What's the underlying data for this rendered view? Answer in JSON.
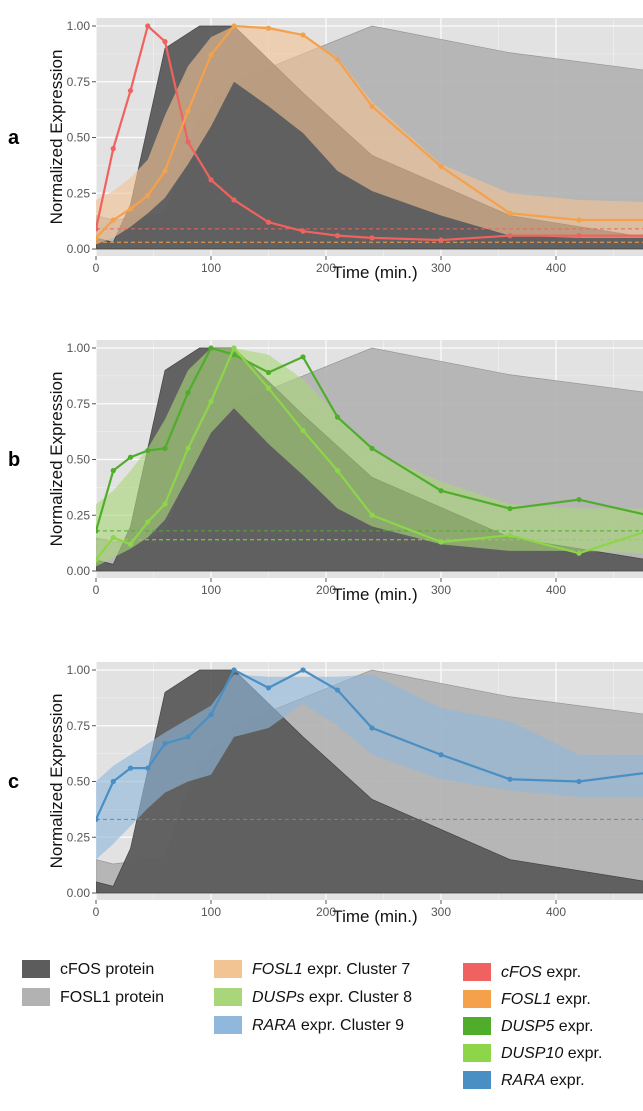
{
  "colors": {
    "cfos_protein": "#5c5c5c",
    "fosl1_protein": "#b2b2b2",
    "panel_bg": "#e2e2e2",
    "cfos_expr": "#f0625f",
    "fosl1_expr": "#f5a04a",
    "fosl1_cluster": "#f2c494",
    "dusp5_expr": "#50ad2c",
    "dusp10_expr": "#8dd549",
    "dusps_cluster": "#a9d67a",
    "rara_expr": "#4a8fc4",
    "rara_cluster": "#8fb8dc"
  },
  "legend": {
    "col1": [
      {
        "name": "cFOS protein",
        "color": "cfos_protein"
      },
      {
        "name": "FOSL1 protein",
        "color": "fosl1_protein"
      }
    ],
    "col2": [
      {
        "gene": "FOSL1",
        "rest": "expr. Cluster 7",
        "color": "fosl1_cluster"
      },
      {
        "gene": "DUSPs",
        "rest": "expr. Cluster 8",
        "color": "dusps_cluster"
      },
      {
        "gene": "RARA",
        "rest": "expr. Cluster 9",
        "color": "rara_cluster"
      }
    ],
    "col3": [
      {
        "gene": "cFOS",
        "rest": "expr.",
        "color": "cfos_expr"
      },
      {
        "gene": "FOSL1",
        "rest": "expr.",
        "color": "fosl1_expr"
      },
      {
        "gene": "DUSP5",
        "rest": "expr.",
        "color": "dusp5_expr"
      },
      {
        "gene": "DUSP10",
        "rest": "expr.",
        "color": "dusp10_expr"
      },
      {
        "gene": "RARA",
        "rest": "expr.",
        "color": "rara_expr"
      }
    ]
  },
  "chart_data": [
    {
      "type": "area",
      "panel_label": "a",
      "xlabel": "Time (min.)",
      "ylabel": "Normalized Expression",
      "xlim": [
        0,
        480
      ],
      "ylim": [
        0,
        1
      ],
      "xticks": [
        0,
        100,
        200,
        300,
        400
      ],
      "yticks": [
        "0.00",
        "0.25",
        "0.50",
        "0.75",
        "1.00"
      ],
      "grid": true,
      "proteins": [
        {
          "name": "FOSL1 protein",
          "color": "fosl1_protein",
          "x": [
            0,
            15,
            60,
            90,
            120,
            240,
            360,
            480
          ],
          "y": [
            0.15,
            0.13,
            0.16,
            0.6,
            0.75,
            1.0,
            0.88,
            0.8
          ]
        },
        {
          "name": "cFOS protein",
          "color": "cfos_protein",
          "x": [
            0,
            15,
            30,
            60,
            90,
            120,
            180,
            240,
            360,
            480
          ],
          "y": [
            0.05,
            0.03,
            0.2,
            0.9,
            1.0,
            1.0,
            0.7,
            0.42,
            0.15,
            0.05
          ]
        }
      ],
      "bands": [
        {
          "name": "FOSL1 expr. Cluster 7",
          "color": "fosl1_cluster",
          "x": [
            0,
            15,
            30,
            45,
            60,
            80,
            100,
            120,
            150,
            180,
            210,
            240,
            300,
            360,
            420,
            480
          ],
          "upper": [
            0.22,
            0.26,
            0.32,
            0.4,
            0.6,
            0.82,
            0.95,
            1.0,
            1.0,
            0.96,
            0.86,
            0.66,
            0.38,
            0.25,
            0.22,
            0.21
          ],
          "lower": [
            0.02,
            0.05,
            0.1,
            0.16,
            0.23,
            0.38,
            0.55,
            0.75,
            0.64,
            0.52,
            0.35,
            0.26,
            0.15,
            0.06,
            0.05,
            0.05
          ]
        }
      ],
      "series": [
        {
          "name": "cFOS expr.",
          "color": "cfos_expr",
          "x": [
            0,
            15,
            30,
            45,
            60,
            80,
            100,
            120,
            150,
            180,
            210,
            240,
            300,
            360,
            420,
            480
          ],
          "y": [
            0.09,
            0.45,
            0.71,
            1.0,
            0.93,
            0.48,
            0.31,
            0.22,
            0.12,
            0.08,
            0.06,
            0.05,
            0.04,
            0.06,
            0.06,
            0.06
          ]
        },
        {
          "name": "FOSL1 expr.",
          "color": "fosl1_expr",
          "x": [
            0,
            15,
            30,
            45,
            60,
            80,
            100,
            120,
            150,
            180,
            210,
            240,
            300,
            360,
            420,
            480
          ],
          "y": [
            0.05,
            0.13,
            0.18,
            0.24,
            0.35,
            0.62,
            0.87,
            1.0,
            0.99,
            0.96,
            0.85,
            0.64,
            0.37,
            0.16,
            0.13,
            0.13
          ]
        }
      ],
      "baselines": [
        {
          "color": "cfos_expr",
          "y": 0.09
        },
        {
          "color": "fosl1_expr",
          "y": 0.03
        }
      ]
    },
    {
      "type": "area",
      "panel_label": "b",
      "xlabel": "Time (min.)",
      "ylabel": "Normalized Expression",
      "xlim": [
        0,
        480
      ],
      "ylim": [
        0,
        1
      ],
      "xticks": [
        0,
        100,
        200,
        300,
        400
      ],
      "yticks": [
        "0.00",
        "0.25",
        "0.50",
        "0.75",
        "1.00"
      ],
      "grid": true,
      "proteins": [
        {
          "name": "FOSL1 protein",
          "color": "fosl1_protein",
          "x": [
            0,
            15,
            60,
            90,
            120,
            240,
            360,
            480
          ],
          "y": [
            0.15,
            0.13,
            0.16,
            0.6,
            0.75,
            1.0,
            0.88,
            0.8
          ]
        },
        {
          "name": "cFOS protein",
          "color": "cfos_protein",
          "x": [
            0,
            15,
            30,
            60,
            90,
            120,
            180,
            240,
            360,
            480
          ],
          "y": [
            0.05,
            0.03,
            0.2,
            0.9,
            1.0,
            1.0,
            0.7,
            0.42,
            0.15,
            0.05
          ]
        }
      ],
      "bands": [
        {
          "name": "DUSPs expr. Cluster 8",
          "color": "dusps_cluster",
          "x": [
            0,
            15,
            30,
            45,
            60,
            80,
            100,
            120,
            150,
            180,
            210,
            240,
            300,
            360,
            420,
            480
          ],
          "upper": [
            0.3,
            0.36,
            0.45,
            0.55,
            0.68,
            0.9,
            1.0,
            1.0,
            0.97,
            0.86,
            0.7,
            0.54,
            0.4,
            0.3,
            0.28,
            0.28
          ],
          "lower": [
            0.02,
            0.06,
            0.1,
            0.15,
            0.23,
            0.42,
            0.62,
            0.73,
            0.57,
            0.43,
            0.28,
            0.2,
            0.12,
            0.09,
            0.09,
            0.08
          ]
        }
      ],
      "series": [
        {
          "name": "DUSP5 expr.",
          "color": "dusp5_expr",
          "x": [
            0,
            15,
            30,
            45,
            60,
            80,
            100,
            120,
            150,
            180,
            210,
            240,
            300,
            360,
            420,
            480
          ],
          "y": [
            0.18,
            0.45,
            0.51,
            0.54,
            0.55,
            0.8,
            1.0,
            0.97,
            0.89,
            0.96,
            0.69,
            0.55,
            0.36,
            0.28,
            0.32,
            0.25
          ]
        },
        {
          "name": "DUSP10 expr.",
          "color": "dusp10_expr",
          "x": [
            0,
            15,
            30,
            45,
            60,
            80,
            100,
            120,
            150,
            180,
            210,
            240,
            300,
            360,
            420,
            480
          ],
          "y": [
            0.05,
            0.15,
            0.12,
            0.22,
            0.3,
            0.55,
            0.76,
            1.0,
            0.82,
            0.63,
            0.45,
            0.25,
            0.13,
            0.16,
            0.08,
            0.18
          ]
        }
      ],
      "baselines": [
        {
          "color": "dusp5_expr",
          "y": 0.18
        },
        {
          "color": "dusp10_expr",
          "y": 0.14
        }
      ]
    },
    {
      "type": "area",
      "panel_label": "c",
      "xlabel": "Time (min.)",
      "ylabel": "Normalized Expression",
      "xlim": [
        0,
        480
      ],
      "ylim": [
        0,
        1
      ],
      "xticks": [
        0,
        100,
        200,
        300,
        400
      ],
      "yticks": [
        "0.00",
        "0.25",
        "0.50",
        "0.75",
        "1.00"
      ],
      "grid": true,
      "proteins": [
        {
          "name": "FOSL1 protein",
          "color": "fosl1_protein",
          "x": [
            0,
            15,
            60,
            90,
            120,
            240,
            360,
            480
          ],
          "y": [
            0.15,
            0.13,
            0.16,
            0.6,
            0.75,
            1.0,
            0.88,
            0.8
          ]
        },
        {
          "name": "cFOS protein",
          "color": "cfos_protein",
          "x": [
            0,
            15,
            30,
            60,
            90,
            120,
            180,
            240,
            360,
            480
          ],
          "y": [
            0.05,
            0.03,
            0.2,
            0.9,
            1.0,
            1.0,
            0.7,
            0.42,
            0.15,
            0.05
          ]
        }
      ],
      "bands": [
        {
          "name": "RARA expr. Cluster 9",
          "color": "rara_cluster",
          "x": [
            0,
            15,
            30,
            45,
            60,
            80,
            100,
            120,
            150,
            180,
            210,
            240,
            300,
            360,
            420,
            480
          ],
          "upper": [
            0.5,
            0.57,
            0.62,
            0.67,
            0.72,
            0.78,
            0.84,
            0.98,
            0.97,
            0.97,
            0.97,
            0.98,
            0.83,
            0.77,
            0.62,
            0.62
          ],
          "lower": [
            0.15,
            0.22,
            0.3,
            0.38,
            0.45,
            0.5,
            0.53,
            0.7,
            0.74,
            0.85,
            0.75,
            0.62,
            0.51,
            0.46,
            0.43,
            0.43
          ]
        }
      ],
      "series": [
        {
          "name": "RARA expr.",
          "color": "rara_expr",
          "x": [
            0,
            15,
            30,
            45,
            60,
            80,
            100,
            120,
            150,
            180,
            210,
            240,
            300,
            360,
            420,
            480
          ],
          "y": [
            0.33,
            0.5,
            0.56,
            0.56,
            0.67,
            0.7,
            0.8,
            1.0,
            0.92,
            1.0,
            0.91,
            0.74,
            0.62,
            0.51,
            0.5,
            0.54
          ]
        }
      ],
      "baselines": [
        {
          "color": "rara_expr",
          "y": 0.33
        }
      ]
    }
  ]
}
